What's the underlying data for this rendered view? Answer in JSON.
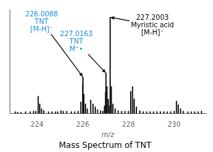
{
  "chart_data": {
    "type": "bar",
    "title": "Mass Spectrum of TNT",
    "xlabel": "m/z",
    "x": [
      223.05,
      223.15,
      223.3,
      223.5,
      223.7,
      223.85,
      223.95,
      224.05,
      224.12,
      224.2,
      224.3,
      224.5,
      224.65,
      224.8,
      224.9,
      225.05,
      225.15,
      225.3,
      225.5,
      225.65,
      225.8,
      225.92,
      226.0,
      226.0088,
      226.05,
      226.12,
      226.2,
      226.35,
      226.45,
      226.55,
      226.65,
      226.78,
      226.88,
      226.95,
      227.0,
      227.0163,
      227.06,
      227.12,
      227.18,
      227.2003,
      227.25,
      227.32,
      227.42,
      227.55,
      227.7,
      227.85,
      228.0,
      228.1,
      228.18,
      228.25,
      228.35,
      228.5,
      228.65,
      228.8,
      228.95,
      229.1,
      229.25,
      229.4,
      229.55,
      229.7,
      229.85,
      230.0,
      230.1,
      230.18,
      230.28,
      230.4,
      230.6,
      230.75,
      230.9,
      231.05,
      231.2
    ],
    "values": [
      0.02,
      0.015,
      0.015,
      0.02,
      0.02,
      0.025,
      0.025,
      0.18,
      0.1,
      0.05,
      0.03,
      0.02,
      0.02,
      0.02,
      0.02,
      0.03,
      0.025,
      0.025,
      0.02,
      0.02,
      0.025,
      0.12,
      0.3,
      0.38,
      0.2,
      0.1,
      0.05,
      0.14,
      0.1,
      0.07,
      0.04,
      0.03,
      0.025,
      0.08,
      0.22,
      0.42,
      0.28,
      0.15,
      0.08,
      1.0,
      0.28,
      0.1,
      0.05,
      0.03,
      0.025,
      0.025,
      0.025,
      0.23,
      0.28,
      0.15,
      0.07,
      0.03,
      0.02,
      0.02,
      0.02,
      0.02,
      0.02,
      0.02,
      0.02,
      0.02,
      0.02,
      0.025,
      0.13,
      0.09,
      0.05,
      0.025,
      0.02,
      0.02,
      0.02,
      0.02,
      0.025
    ],
    "color": "#000000",
    "xlim": [
      222.8,
      231.4
    ],
    "xticks": [
      224,
      226,
      228,
      230
    ],
    "ylim": [
      0,
      1.08
    ],
    "tick_labels": "x",
    "grid": false,
    "annotations": [
      {
        "text": "226.0088\nTNT\n[M-H]⁻",
        "x": 226.0088,
        "y": 0.38,
        "text_x": 224.2,
        "text_y": 0.84,
        "color": "#1B8FE0"
      },
      {
        "text": "227.0163\nTNT\nM⁺•",
        "x": 227.0163,
        "y": 0.42,
        "text_x": 225.72,
        "text_y": 0.63,
        "color": "#1B8FE0"
      },
      {
        "text": "227.2003\nMyristic acid\n[M-H]⁻",
        "x": 227.2003,
        "y": 1.0,
        "text_x": 229.05,
        "text_y": 0.8,
        "color": "#000000"
      }
    ]
  }
}
